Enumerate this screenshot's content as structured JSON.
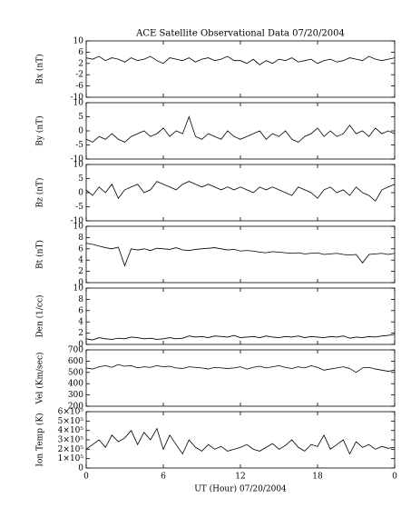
{
  "chart_data": {
    "type": "line",
    "title": "ACE Satellite Observational Data   07/20/2004",
    "xlabel": "UT (Hour)   07/20/2004",
    "xlim": [
      0,
      24
    ],
    "xticks": [
      0,
      6,
      12,
      18,
      {
        "value": 24,
        "label": "0"
      }
    ],
    "color": "#000000",
    "x": [
      0,
      0.5,
      1,
      1.5,
      2,
      2.5,
      3,
      3.5,
      4,
      4.5,
      5,
      5.5,
      6,
      6.5,
      7,
      7.5,
      8,
      8.5,
      9,
      9.5,
      10,
      10.5,
      11,
      11.5,
      12,
      12.5,
      13,
      13.5,
      14,
      14.5,
      15,
      15.5,
      16,
      16.5,
      17,
      17.5,
      18,
      18.5,
      19,
      19.5,
      20,
      20.5,
      21,
      21.5,
      22,
      22.5,
      23,
      23.5,
      24
    ],
    "panels": [
      {
        "ylabel": "Bx (nT)",
        "ylim": [
          -10,
          10
        ],
        "yticks": [
          -10,
          -6,
          -2,
          2,
          6,
          10
        ],
        "values": [
          4,
          3.5,
          4.5,
          3,
          4,
          3.5,
          2.5,
          4,
          3,
          3.5,
          4.5,
          3,
          2,
          4,
          3.5,
          3,
          4,
          2.5,
          3.5,
          4,
          3,
          3.5,
          4.5,
          3,
          3,
          2,
          3.5,
          1.5,
          3,
          2,
          3.5,
          3,
          4,
          2.5,
          3,
          3.5,
          2,
          3,
          3.5,
          2.5,
          3,
          4,
          3.5,
          3,
          4.5,
          3.5,
          3,
          3.5,
          4
        ]
      },
      {
        "ylabel": "By (nT)",
        "ylim": [
          -10,
          10
        ],
        "yticks": [
          -10,
          -5,
          0,
          5,
          10
        ],
        "values": [
          -3,
          -4,
          -2,
          -3,
          -1,
          -3,
          -4,
          -2,
          -1,
          0,
          -2,
          -1,
          1,
          -2,
          0,
          -1,
          5,
          -2,
          -3,
          -1,
          -2,
          -3,
          0,
          -2,
          -3,
          -2,
          -1,
          0,
          -3,
          -1,
          -2,
          0,
          -3,
          -4,
          -2,
          -1,
          1,
          -2,
          0,
          -2,
          -1,
          2,
          -1,
          0,
          -2,
          1,
          -1,
          0,
          -1
        ]
      },
      {
        "ylabel": "Bz (nT)",
        "ylim": [
          -10,
          10
        ],
        "yticks": [
          -10,
          -5,
          0,
          5,
          10
        ],
        "values": [
          1,
          -1,
          2,
          0,
          3,
          -2,
          1,
          2,
          3,
          0,
          1,
          4,
          3,
          2,
          1,
          3,
          4,
          3,
          2,
          3,
          2,
          1,
          2,
          1,
          2,
          1,
          0,
          2,
          1,
          2,
          1,
          0,
          -1,
          2,
          1,
          0,
          -2,
          1,
          2,
          0,
          1,
          -1,
          2,
          0,
          -1,
          -3,
          1,
          2,
          3
        ]
      },
      {
        "ylabel": "Bt (nT)",
        "ylim": [
          0,
          10
        ],
        "yticks": [
          0,
          2,
          4,
          6,
          8,
          10
        ],
        "values": [
          7,
          6.8,
          6.5,
          6.2,
          6,
          6.3,
          3,
          6,
          5.8,
          6,
          5.7,
          6.1,
          6,
          5.9,
          6.2,
          5.8,
          5.7,
          5.9,
          6,
          6.1,
          6.2,
          6,
          5.8,
          5.9,
          5.6,
          5.7,
          5.6,
          5.4,
          5.3,
          5.5,
          5.4,
          5.3,
          5.2,
          5.3,
          5.1,
          5.2,
          5.3,
          5,
          5.1,
          5.2,
          5,
          4.9,
          5,
          3.5,
          5,
          5.1,
          5.2,
          5,
          5.2
        ]
      },
      {
        "ylabel": "Den (1/cc)",
        "ylim": [
          0,
          10
        ],
        "yticks": [
          0,
          2,
          4,
          6,
          8,
          10
        ],
        "values": [
          1,
          0.8,
          1.2,
          1,
          0.9,
          1.1,
          1,
          1.3,
          1.2,
          1,
          1.1,
          0.9,
          1,
          1.2,
          1,
          1.1,
          1.5,
          1.3,
          1.4,
          1.2,
          1.5,
          1.4,
          1.3,
          1.6,
          1.2,
          1.3,
          1.4,
          1.2,
          1.5,
          1.3,
          1.2,
          1.4,
          1.3,
          1.5,
          1.2,
          1.4,
          1.3,
          1.2,
          1.4,
          1.3,
          1.5,
          1.1,
          1.3,
          1.2,
          1.4,
          1.3,
          1.5,
          1.6,
          1.8
        ]
      },
      {
        "ylabel": "Vel (Km/sec)",
        "ylim": [
          200,
          700
        ],
        "yticks": [
          200,
          300,
          400,
          500,
          600,
          700
        ],
        "values": [
          540,
          530,
          550,
          560,
          545,
          570,
          555,
          560,
          540,
          550,
          545,
          560,
          550,
          555,
          540,
          535,
          550,
          545,
          540,
          530,
          545,
          540,
          535,
          540,
          550,
          530,
          545,
          555,
          540,
          550,
          560,
          545,
          535,
          550,
          540,
          560,
          545,
          520,
          530,
          540,
          550,
          535,
          500,
          540,
          545,
          530,
          520,
          510,
          520
        ]
      },
      {
        "ylabel": "Ion Temp (K)",
        "ylim": [
          0,
          600000
        ],
        "yticks": [
          0,
          {
            "value": 100000,
            "label": "1×10⁵"
          },
          {
            "value": 200000,
            "label": "2×10⁵"
          },
          {
            "value": 300000,
            "label": "3×10⁵"
          },
          {
            "value": 400000,
            "label": "4×10⁵"
          },
          {
            "value": 500000,
            "label": "5×10⁵"
          },
          {
            "value": 600000,
            "label": "6×10⁵"
          }
        ],
        "values": [
          200000,
          250000,
          300000,
          220000,
          350000,
          280000,
          320000,
          400000,
          250000,
          380000,
          300000,
          420000,
          200000,
          350000,
          250000,
          150000,
          300000,
          220000,
          180000,
          250000,
          200000,
          230000,
          180000,
          200000,
          220000,
          250000,
          200000,
          180000,
          220000,
          260000,
          200000,
          240000,
          300000,
          220000,
          180000,
          250000,
          230000,
          350000,
          200000,
          250000,
          300000,
          150000,
          280000,
          220000,
          250000,
          200000,
          230000,
          210000,
          220000
        ]
      }
    ]
  }
}
